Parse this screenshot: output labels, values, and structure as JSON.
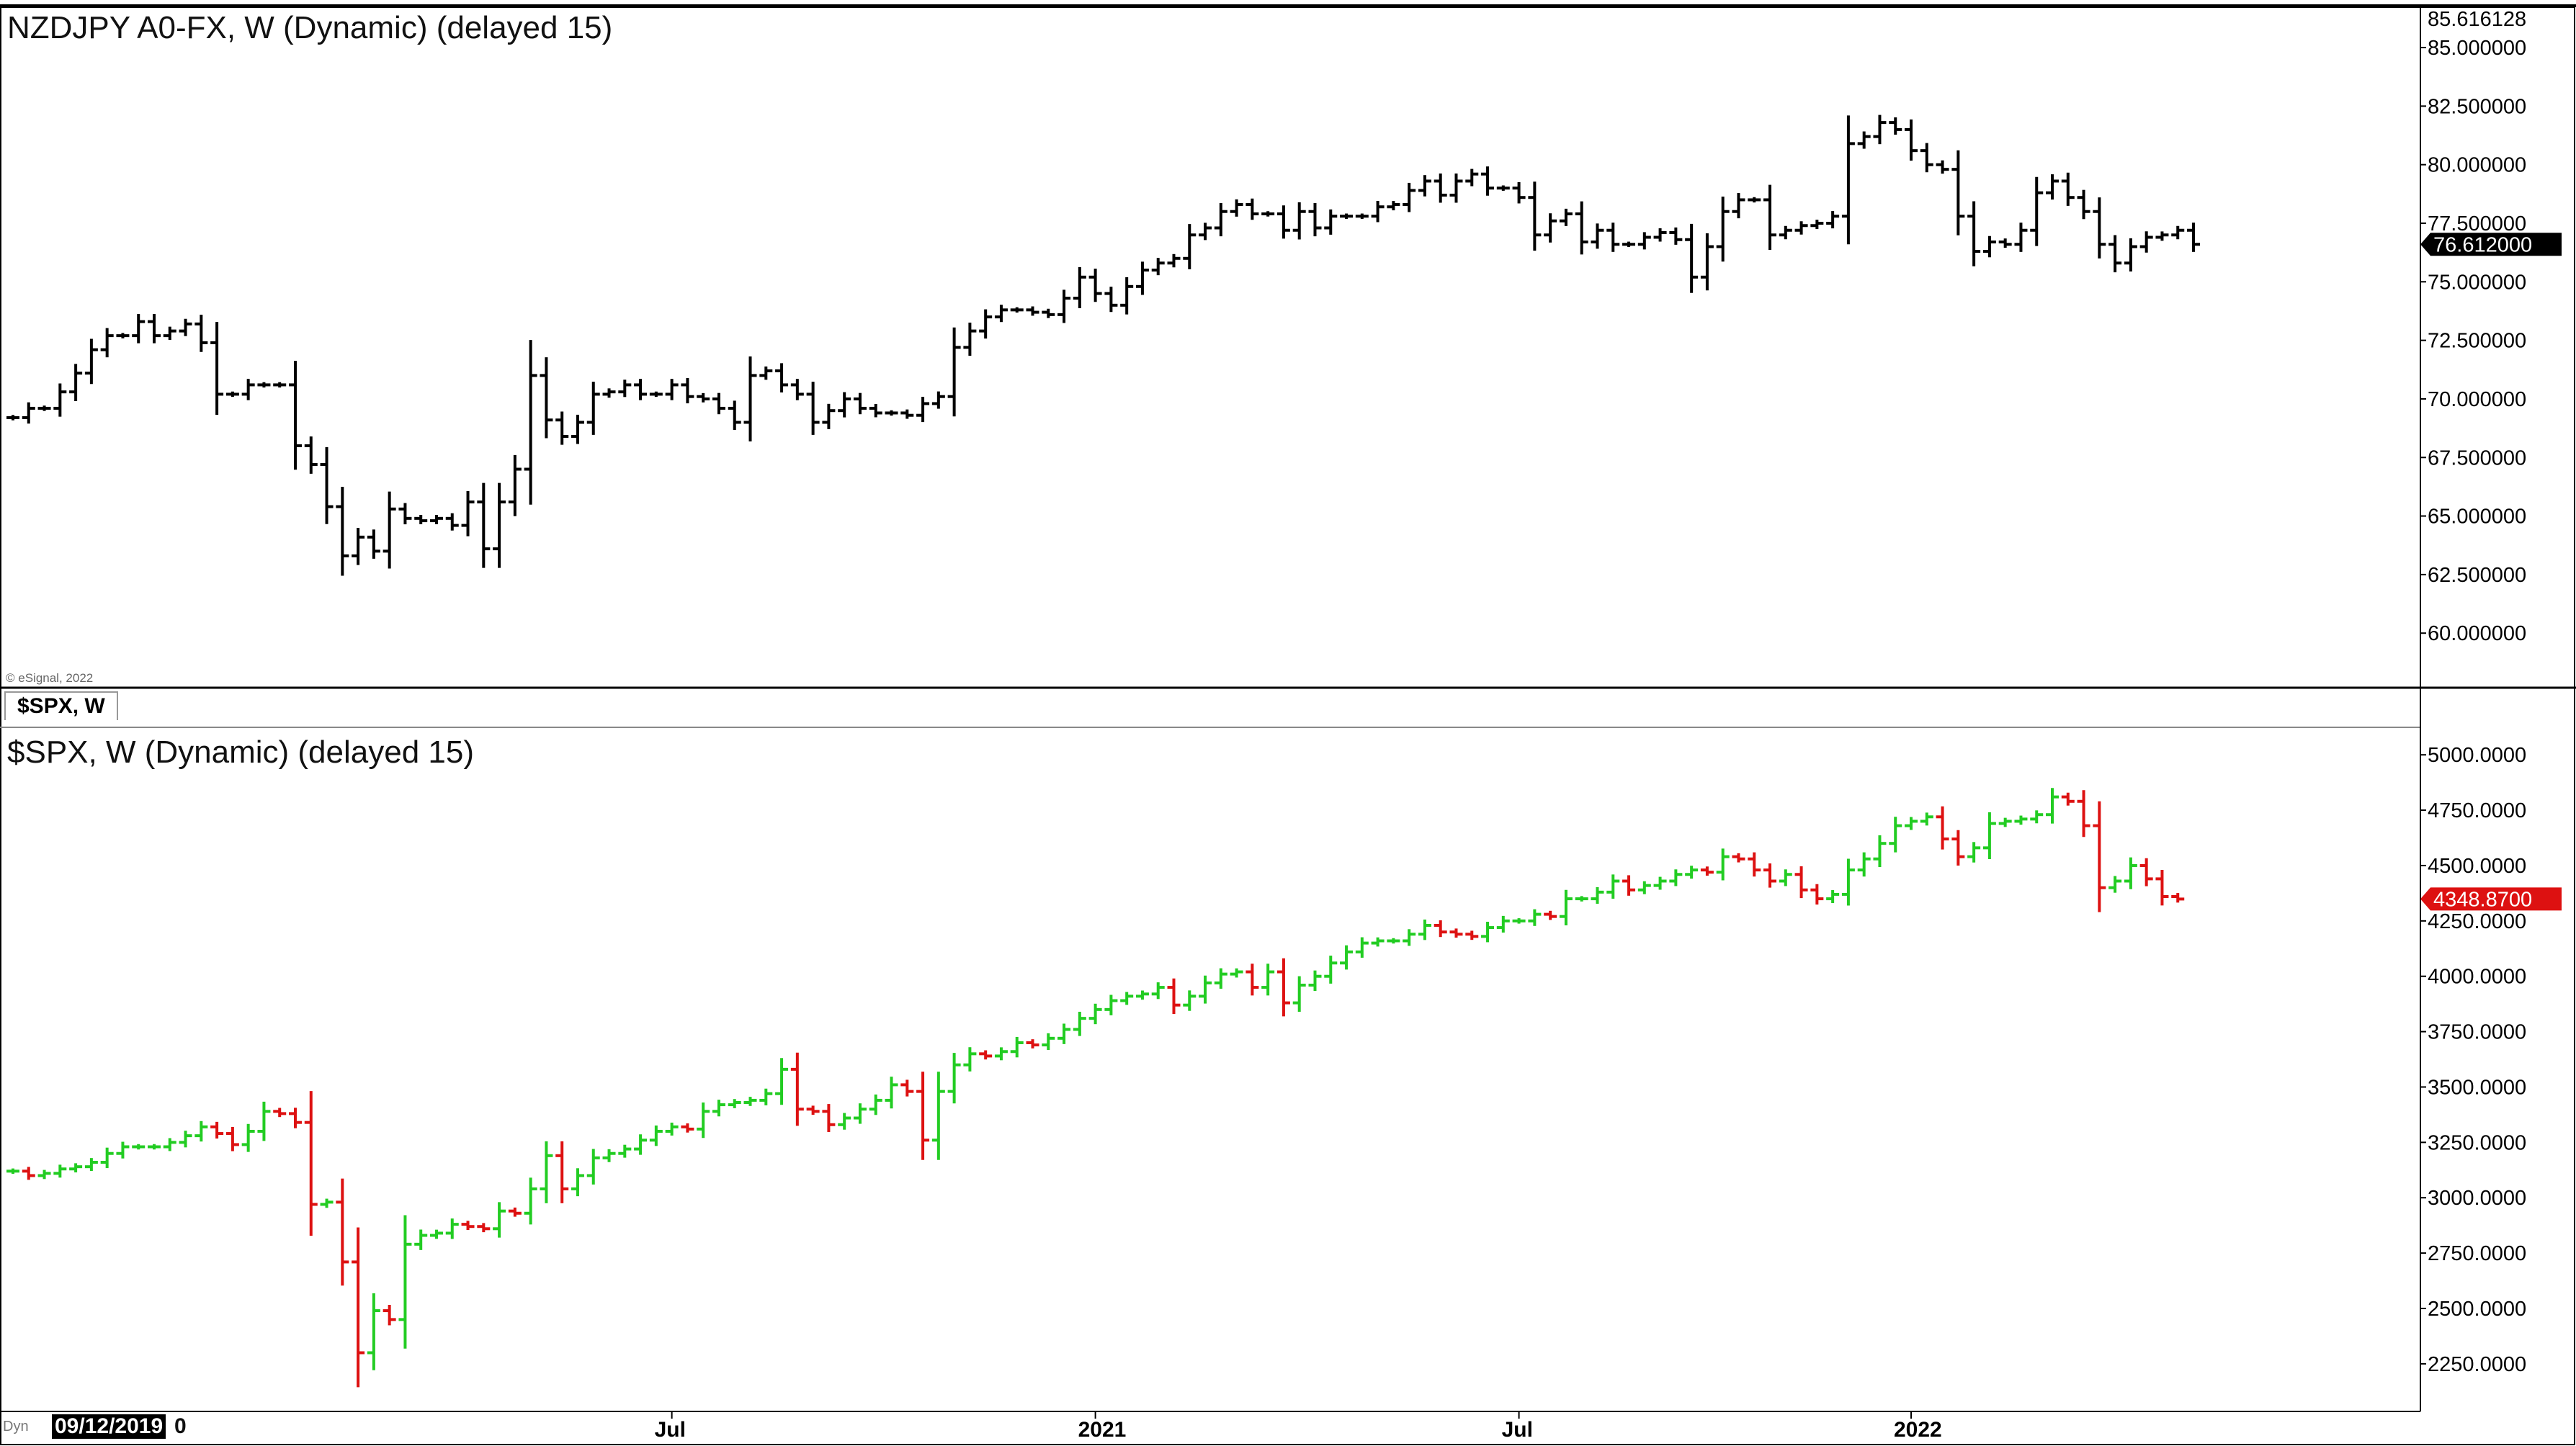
{
  "panes": [
    {
      "title": "NZDJPY A0-FX, W (Dynamic) (delayed 15)",
      "credit": "© eSignal, 2022",
      "top_axis_label": "85.616128",
      "last_price_label": "76.612000"
    },
    {
      "tab_label": "$SPX, W",
      "title": "$SPX, W (Dynamic) (delayed 15)",
      "last_price_label": "4348.8700"
    }
  ],
  "footer": {
    "dyn_text": "Dyn",
    "date_box": "09/12/2019",
    "date_suffix": "0"
  },
  "colors": {
    "up": "#22cc22",
    "down": "#dd1111",
    "neutral": "#000000",
    "last_spx": "#dd1111",
    "last_nzd": "#000000"
  },
  "chart_data": [
    {
      "type": "ohlc",
      "title": "NZDJPY A0-FX, W (Dynamic) (delayed 15)",
      "ylim": [
        58.5,
        85.616128
      ],
      "yticks": [
        "60.000000",
        "62.500000",
        "65.000000",
        "67.500000",
        "70.000000",
        "72.500000",
        "75.000000",
        "77.500000",
        "80.000000",
        "82.500000",
        "85.000000"
      ],
      "x_labels": [
        "Jul",
        "2021",
        "Jul",
        "2022"
      ],
      "x_label_positions": [
        42,
        69,
        96,
        121
      ],
      "series": [
        {
          "close": [
            69.2,
            69.6,
            69.6,
            70.3,
            71.1,
            72.1,
            72.7,
            72.7,
            73.3,
            72.7,
            72.9,
            73.2,
            72.4,
            70.2,
            70.2,
            70.6,
            70.6,
            70.6,
            68.0,
            67.2,
            65.4,
            63.3,
            64.1,
            63.5,
            65.3,
            64.9,
            64.8,
            64.9,
            64.6,
            65.6,
            63.6,
            65.6,
            67.0,
            71.0,
            69.1,
            68.4,
            69.0,
            70.2,
            70.3,
            70.6,
            70.2,
            70.2,
            70.6,
            70.1,
            70.0,
            69.6,
            69.0,
            71.0,
            71.2,
            70.6,
            70.2,
            69.0,
            69.5,
            70.0,
            69.6,
            69.4,
            69.4,
            69.3,
            69.8,
            70.1,
            72.2,
            72.9,
            73.5,
            73.8,
            73.8,
            73.7,
            73.6,
            74.3,
            75.2,
            74.5,
            74.0,
            74.8,
            75.5,
            75.8,
            76.0,
            77.0,
            77.3,
            78.0,
            78.3,
            77.9,
            77.9,
            77.2,
            78.0,
            77.3,
            77.8,
            77.8,
            77.8,
            78.2,
            78.3,
            78.9,
            79.3,
            78.7,
            79.3,
            79.6,
            79.0,
            79.0,
            78.6,
            77.0,
            77.6,
            77.9,
            76.7,
            77.2,
            76.6,
            76.6,
            76.9,
            77.1,
            76.8,
            75.2,
            76.5,
            78.0,
            78.5,
            78.5,
            77.0,
            77.2,
            77.4,
            77.5,
            77.8,
            80.9,
            81.2,
            81.8,
            81.5,
            80.6,
            80.0,
            79.8,
            77.8,
            76.3,
            76.7,
            76.6,
            77.2,
            78.8,
            79.3,
            78.6,
            78.0,
            76.6,
            75.8,
            76.5,
            76.9,
            77.0,
            77.2,
            76.6
          ]
        }
      ]
    },
    {
      "type": "ohlc",
      "title": "$SPX, W (Dynamic) (delayed 15)",
      "ylim": [
        2100,
        5000
      ],
      "yticks": [
        "2250.0000",
        "2500.0000",
        "2750.0000",
        "3000.0000",
        "3250.0000",
        "3500.0000",
        "3750.0000",
        "4000.0000",
        "4250.0000",
        "4500.0000",
        "4750.0000",
        "5000.0000"
      ],
      "x_labels": [
        "Jul",
        "2021",
        "Jul",
        "2022"
      ],
      "series": [
        {
          "close": [
            3120,
            3100,
            3110,
            3130,
            3140,
            3160,
            3200,
            3230,
            3230,
            3230,
            3250,
            3280,
            3320,
            3290,
            3240,
            3300,
            3390,
            3380,
            3340,
            2970,
            2980,
            2710,
            2300,
            2490,
            2450,
            2790,
            2830,
            2840,
            2880,
            2870,
            2860,
            2940,
            2930,
            3040,
            3190,
            3040,
            3100,
            3180,
            3200,
            3220,
            3260,
            3300,
            3320,
            3310,
            3390,
            3420,
            3430,
            3440,
            3470,
            3580,
            3400,
            3390,
            3330,
            3360,
            3400,
            3440,
            3510,
            3480,
            3260,
            3480,
            3600,
            3650,
            3640,
            3660,
            3700,
            3690,
            3720,
            3760,
            3810,
            3850,
            3890,
            3910,
            3920,
            3950,
            3870,
            3910,
            3970,
            4010,
            4020,
            3950,
            4020,
            3880,
            3960,
            4000,
            4060,
            4110,
            4150,
            4160,
            4160,
            4190,
            4230,
            4200,
            4190,
            4180,
            4220,
            4250,
            4250,
            4280,
            4270,
            4350,
            4350,
            4380,
            4430,
            4390,
            4410,
            4430,
            4460,
            4480,
            4470,
            4540,
            4530,
            4480,
            4430,
            4460,
            4390,
            4350,
            4370,
            4480,
            4530,
            4600,
            4680,
            4700,
            4720,
            4620,
            4540,
            4580,
            4690,
            4700,
            4710,
            4730,
            4810,
            4790,
            4680,
            4400,
            4430,
            4500,
            4440,
            4360,
            4348.87
          ]
        }
      ]
    }
  ]
}
